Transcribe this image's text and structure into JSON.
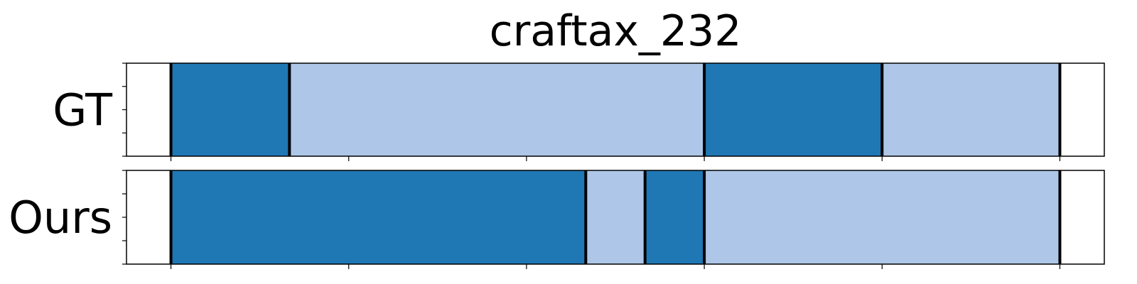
{
  "chart_data": {
    "type": "segmentation",
    "title": "craftax_232",
    "xlim": [
      -0.75,
      15.75
    ],
    "x_ticks": [
      0,
      3,
      6,
      9,
      12,
      15
    ],
    "colors": {
      "dark": "#1f77b4",
      "light": "#aec7e8"
    },
    "rows": [
      {
        "label": "GT",
        "segments": [
          {
            "start": 0,
            "end": 2,
            "class": "dark"
          },
          {
            "start": 2,
            "end": 9,
            "class": "light"
          },
          {
            "start": 9,
            "end": 12,
            "class": "dark"
          },
          {
            "start": 12,
            "end": 15,
            "class": "light"
          }
        ],
        "boundaries": [
          0,
          2,
          9,
          12,
          15
        ]
      },
      {
        "label": "Ours",
        "segments": [
          {
            "start": 0,
            "end": 7,
            "class": "dark"
          },
          {
            "start": 7,
            "end": 8,
            "class": "light"
          },
          {
            "start": 8,
            "end": 9,
            "class": "dark"
          },
          {
            "start": 9,
            "end": 15,
            "class": "light"
          }
        ],
        "boundaries": [
          0,
          7,
          8,
          9,
          15
        ]
      }
    ]
  }
}
